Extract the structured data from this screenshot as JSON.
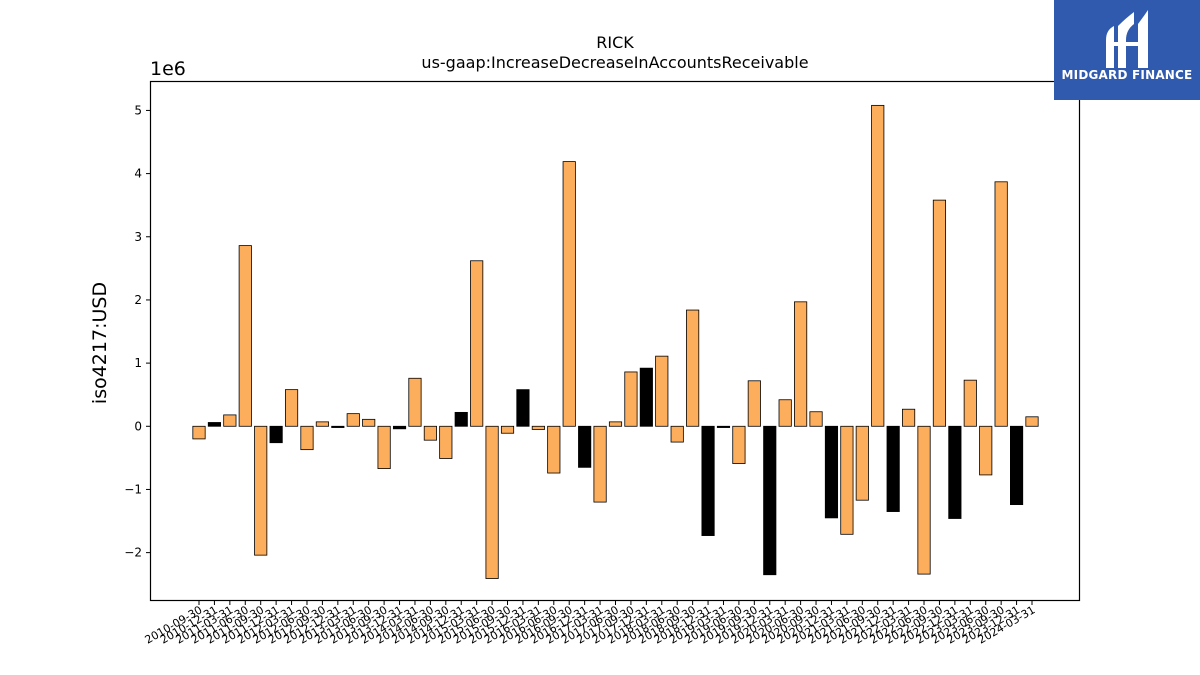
{
  "logo": {
    "text": "MIDGARD FINANCE"
  },
  "chart_data": {
    "type": "bar",
    "title": "RICK",
    "subtitle": "us-gaap:IncreaseDecreaseInAccountsReceivable",
    "ylabel": "iso4217:USD",
    "xlabel": "",
    "y_multiplier": "1e6",
    "ylim": [
      -2.75,
      5.45
    ],
    "yticks": [
      -2,
      -1,
      0,
      1,
      2,
      3,
      4,
      5
    ],
    "ytick_labels": [
      "−2",
      "−1",
      "0",
      "1",
      "2",
      "3",
      "4",
      "5"
    ],
    "colors": {
      "orange": "#fdae5c",
      "black": "#000000"
    },
    "bars": [
      {
        "x": "2010-09-30",
        "value": -0.2,
        "color": "orange"
      },
      {
        "x": "2010-12-31",
        "value": 0.06,
        "color": "black"
      },
      {
        "x": "2011-03-31",
        "value": 0.18,
        "color": "orange"
      },
      {
        "x": "2011-06-30",
        "value": 2.86,
        "color": "orange"
      },
      {
        "x": "2011-09-30",
        "value": -2.04,
        "color": "orange"
      },
      {
        "x": "2011-12-31",
        "value": -0.26,
        "color": "black"
      },
      {
        "x": "2012-03-31",
        "value": 0.58,
        "color": "orange"
      },
      {
        "x": "2012-06-30",
        "value": -0.37,
        "color": "orange"
      },
      {
        "x": "2012-09-30",
        "value": 0.07,
        "color": "orange"
      },
      {
        "x": "2012-12-31",
        "value": -0.02,
        "color": "black"
      },
      {
        "x": "2013-03-31",
        "value": 0.2,
        "color": "orange"
      },
      {
        "x": "2013-06-30",
        "value": 0.11,
        "color": "orange"
      },
      {
        "x": "2013-09-30",
        "value": -0.67,
        "color": "orange"
      },
      {
        "x": "2013-12-31",
        "value": -0.04,
        "color": "black"
      },
      {
        "x": "2014-03-31",
        "value": 0.76,
        "color": "orange"
      },
      {
        "x": "2014-06-30",
        "value": -0.22,
        "color": "orange"
      },
      {
        "x": "2014-09-30",
        "value": -0.51,
        "color": "orange"
      },
      {
        "x": "2014-12-31",
        "value": 0.22,
        "color": "black"
      },
      {
        "x": "2015-03-31",
        "value": 2.62,
        "color": "orange"
      },
      {
        "x": "2015-06-30",
        "value": -2.41,
        "color": "orange"
      },
      {
        "x": "2015-09-30",
        "value": -0.11,
        "color": "orange"
      },
      {
        "x": "2015-12-31",
        "value": 0.58,
        "color": "black"
      },
      {
        "x": "2016-03-31",
        "value": -0.05,
        "color": "orange"
      },
      {
        "x": "2016-06-30",
        "value": -0.74,
        "color": "orange"
      },
      {
        "x": "2016-09-30",
        "value": 4.19,
        "color": "orange"
      },
      {
        "x": "2016-12-31",
        "value": -0.65,
        "color": "black"
      },
      {
        "x": "2017-03-31",
        "value": -1.2,
        "color": "orange"
      },
      {
        "x": "2017-06-30",
        "value": 0.07,
        "color": "orange"
      },
      {
        "x": "2017-09-30",
        "value": 0.86,
        "color": "orange"
      },
      {
        "x": "2017-12-31",
        "value": 0.92,
        "color": "black"
      },
      {
        "x": "2018-03-31",
        "value": 1.11,
        "color": "orange"
      },
      {
        "x": "2018-06-30",
        "value": -0.25,
        "color": "orange"
      },
      {
        "x": "2018-09-30",
        "value": 1.84,
        "color": "orange"
      },
      {
        "x": "2018-12-31",
        "value": -1.73,
        "color": "black"
      },
      {
        "x": "2019-03-31",
        "value": -0.02,
        "color": "black"
      },
      {
        "x": "2019-06-30",
        "value": -0.59,
        "color": "orange"
      },
      {
        "x": "2019-09-30",
        "value": 0.72,
        "color": "orange"
      },
      {
        "x": "2019-12-31",
        "value": -2.35,
        "color": "black"
      },
      {
        "x": "2020-03-31",
        "value": 0.42,
        "color": "orange"
      },
      {
        "x": "2020-06-30",
        "value": 1.97,
        "color": "orange"
      },
      {
        "x": "2020-09-30",
        "value": 0.23,
        "color": "orange"
      },
      {
        "x": "2020-12-31",
        "value": -1.45,
        "color": "black"
      },
      {
        "x": "2021-03-31",
        "value": -1.71,
        "color": "orange"
      },
      {
        "x": "2021-06-30",
        "value": -1.17,
        "color": "orange"
      },
      {
        "x": "2021-09-30",
        "value": 5.08,
        "color": "orange"
      },
      {
        "x": "2021-12-31",
        "value": -1.35,
        "color": "black"
      },
      {
        "x": "2022-03-31",
        "value": 0.27,
        "color": "orange"
      },
      {
        "x": "2022-06-30",
        "value": -2.34,
        "color": "orange"
      },
      {
        "x": "2022-09-30",
        "value": 3.58,
        "color": "orange"
      },
      {
        "x": "2022-12-31",
        "value": -1.46,
        "color": "black"
      },
      {
        "x": "2023-03-31",
        "value": 0.73,
        "color": "orange"
      },
      {
        "x": "2023-06-30",
        "value": -0.77,
        "color": "orange"
      },
      {
        "x": "2023-09-30",
        "value": 3.87,
        "color": "orange"
      },
      {
        "x": "2023-12-31",
        "value": -1.24,
        "color": "black"
      },
      {
        "x": "2024-03-31",
        "value": 0.15,
        "color": "orange"
      }
    ]
  }
}
